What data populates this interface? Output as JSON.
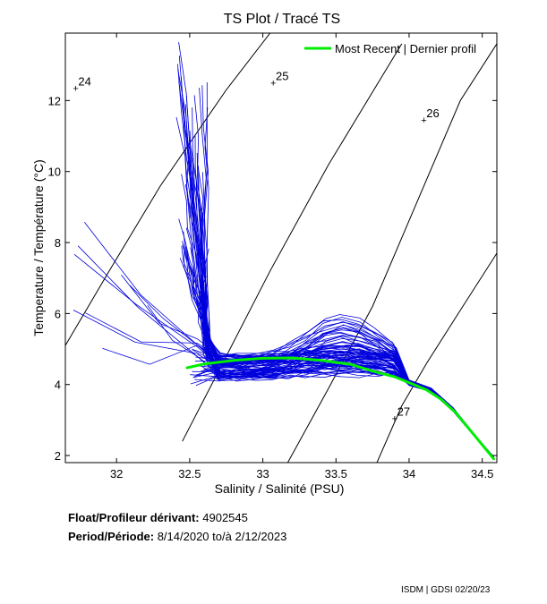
{
  "chart_data": {
    "type": "line",
    "title": "TS Plot / Tracé TS",
    "xlabel": "Salinity / Salinité (PSU)",
    "ylabel": "Temperature / Température (°C)",
    "xlim": [
      31.65,
      34.6
    ],
    "ylim": [
      1.8,
      13.9
    ],
    "x_ticks": [
      32,
      32.5,
      33,
      33.5,
      34,
      34.5
    ],
    "x_tick_labels": [
      "32",
      "32.5",
      "33",
      "33.5",
      "34",
      "34.5"
    ],
    "y_ticks": [
      2,
      4,
      6,
      8,
      10,
      12
    ],
    "y_tick_labels": [
      "2",
      "4",
      "6",
      "8",
      "10",
      "12"
    ],
    "grid": false,
    "legend": {
      "position": "top-right",
      "entries": [
        {
          "label": "Most Recent | Dernier profil",
          "color": "#00ee00"
        }
      ]
    },
    "density_contours": [
      {
        "label": "24",
        "points": [
          [
            31.65,
            5.1
          ],
          [
            31.95,
            7.2
          ],
          [
            32.3,
            9.6
          ],
          [
            32.75,
            12.3
          ],
          [
            33.05,
            13.9
          ]
        ],
        "label_at": [
          31.72,
          12.35
        ]
      },
      {
        "label": "25",
        "points": [
          [
            32.45,
            2.4
          ],
          [
            32.7,
            4.4
          ],
          [
            33.05,
            7.2
          ],
          [
            33.45,
            10.2
          ],
          [
            33.95,
            13.6
          ]
        ],
        "label_at": [
          33.07,
          12.5
        ]
      },
      {
        "label": "26",
        "points": [
          [
            33.17,
            1.8
          ],
          [
            33.45,
            3.9
          ],
          [
            33.75,
            6.2
          ],
          [
            34.05,
            9.1
          ],
          [
            34.35,
            12.0
          ],
          [
            34.6,
            13.6
          ]
        ],
        "label_at": [
          34.1,
          11.45
        ]
      },
      {
        "label": "27",
        "points": [
          [
            33.78,
            1.8
          ],
          [
            33.95,
            3.4
          ],
          [
            34.12,
            4.6
          ],
          [
            34.32,
            5.9
          ],
          [
            34.6,
            7.7
          ]
        ],
        "label_at": [
          33.9,
          3.05
        ]
      }
    ],
    "series": [
      {
        "name": "Most Recent | Dernier profil",
        "color": "#00ee00",
        "width": 3,
        "x": [
          32.48,
          32.6,
          32.8,
          33.0,
          33.2,
          33.4,
          33.6,
          33.75,
          33.9,
          34.0,
          34.12,
          34.22,
          34.32,
          34.45,
          34.58
        ],
        "y": [
          4.47,
          4.58,
          4.68,
          4.74,
          4.75,
          4.68,
          4.57,
          4.38,
          4.22,
          4.05,
          3.85,
          3.58,
          3.2,
          2.55,
          1.9
        ]
      }
    ]
  },
  "info": {
    "float_label": "Float/Profileur dérivant:",
    "float_value": "4902545",
    "period_label": "Period/Période:",
    "period_start": "8/14/2020",
    "period_sep": "to/à",
    "period_end": "2/12/2023"
  },
  "footer": "ISDM | GDSI  02/20/23",
  "colors": {
    "history": "#0000dd",
    "recent": "#00ee00",
    "axis": "#000000"
  }
}
